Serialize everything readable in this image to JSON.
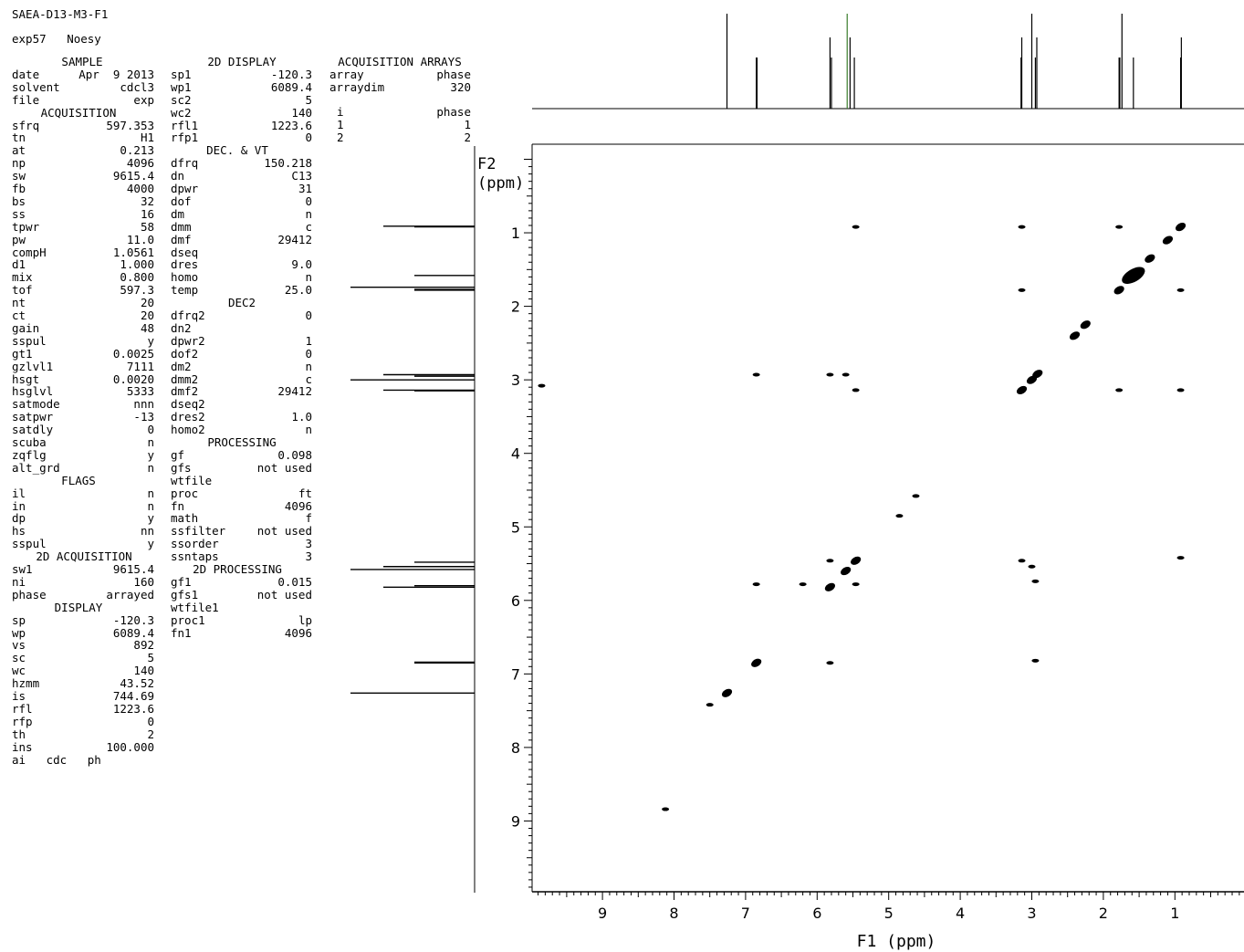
{
  "header": {
    "title": "SAEA-D13-M3-F1",
    "experiment": "exp57   Noesy"
  },
  "sample_block": {
    "heading": "SAMPLE",
    "rows": [
      [
        "date",
        "Apr  9 2013"
      ],
      [
        "solvent",
        "cdcl3"
      ],
      [
        "file",
        "exp"
      ]
    ]
  },
  "acquisition_block": {
    "heading": "ACQUISITION",
    "rows": [
      [
        "sfrq",
        "597.353"
      ],
      [
        "tn",
        "H1"
      ],
      [
        "at",
        "0.213"
      ],
      [
        "np",
        "4096"
      ],
      [
        "sw",
        "9615.4"
      ],
      [
        "fb",
        "4000"
      ],
      [
        "bs",
        "32"
      ],
      [
        "ss",
        "16"
      ],
      [
        "tpwr",
        "58"
      ],
      [
        "pw",
        "11.0"
      ],
      [
        "compH",
        "1.0561"
      ],
      [
        "d1",
        "1.000"
      ],
      [
        "mix",
        "0.800"
      ],
      [
        "tof",
        "597.3"
      ],
      [
        "nt",
        "20"
      ],
      [
        "ct",
        "20"
      ],
      [
        "gain",
        "48"
      ],
      [
        "sspul",
        "y"
      ],
      [
        "gt1",
        "0.0025"
      ],
      [
        "gzlvl1",
        "7111"
      ],
      [
        "hsgt",
        "0.0020"
      ],
      [
        "hsglvl",
        "5333"
      ],
      [
        "satmode",
        "nnn"
      ],
      [
        "satpwr",
        "-13"
      ],
      [
        "satdly",
        "0"
      ],
      [
        "scuba",
        "n"
      ],
      [
        "zqflg",
        "y"
      ],
      [
        "alt_grd",
        "n"
      ]
    ]
  },
  "flags_block": {
    "heading": "FLAGS",
    "rows": [
      [
        "il",
        "n"
      ],
      [
        "in",
        "n"
      ],
      [
        "dp",
        "y"
      ],
      [
        "hs",
        "nn"
      ],
      [
        "sspul",
        "y"
      ]
    ]
  },
  "acq2d_block": {
    "heading": "2D ACQUISITION",
    "rows": [
      [
        "sw1",
        "9615.4"
      ],
      [
        "ni",
        "160"
      ],
      [
        "phase",
        "arrayed"
      ]
    ]
  },
  "display_block": {
    "heading": "DISPLAY",
    "rows": [
      [
        "sp",
        "-120.3"
      ],
      [
        "wp",
        "6089.4"
      ],
      [
        "vs",
        "892"
      ],
      [
        "sc",
        "5"
      ],
      [
        "wc",
        "140"
      ],
      [
        "hzmm",
        "43.52"
      ],
      [
        "is",
        "744.69"
      ],
      [
        "rfl",
        "1223.6"
      ],
      [
        "rfp",
        "0"
      ],
      [
        "th",
        "2"
      ],
      [
        "ins",
        "100.000"
      ],
      [
        "ai   cdc   ph",
        ""
      ]
    ]
  },
  "display2d_block": {
    "heading": "2D DISPLAY",
    "rows": [
      [
        "sp1",
        "-120.3"
      ],
      [
        "wp1",
        "6089.4"
      ],
      [
        "sc2",
        "5"
      ],
      [
        "wc2",
        "140"
      ],
      [
        "rfl1",
        "1223.6"
      ],
      [
        "rfp1",
        "0"
      ]
    ]
  },
  "decvt_block": {
    "heading": "DEC. & VT",
    "rows": [
      [
        "dfrq",
        "150.218"
      ],
      [
        "dn",
        "C13"
      ],
      [
        "dpwr",
        "31"
      ],
      [
        "dof",
        "0"
      ],
      [
        "dm",
        "n"
      ],
      [
        "dmm",
        "c"
      ],
      [
        "dmf",
        "29412"
      ],
      [
        "dseq",
        ""
      ],
      [
        "dres",
        "9.0"
      ],
      [
        "homo",
        "n"
      ],
      [
        "temp",
        "25.0"
      ]
    ]
  },
  "dec2_block": {
    "heading": "DEC2",
    "rows": [
      [
        "dfrq2",
        "0"
      ],
      [
        "dn2",
        ""
      ],
      [
        "dpwr2",
        "1"
      ],
      [
        "dof2",
        "0"
      ],
      [
        "dm2",
        "n"
      ],
      [
        "dmm2",
        "c"
      ],
      [
        "dmf2",
        "29412"
      ],
      [
        "dseq2",
        ""
      ],
      [
        "dres2",
        "1.0"
      ],
      [
        "homo2",
        "n"
      ]
    ]
  },
  "processing_block": {
    "heading": "PROCESSING",
    "rows": [
      [
        "gf",
        "0.098"
      ],
      [
        "gfs",
        "not used"
      ],
      [
        "wtfile",
        ""
      ],
      [
        "proc",
        "ft"
      ],
      [
        "fn",
        "4096"
      ],
      [
        "math",
        "f"
      ],
      [
        "ssfilter",
        "not used"
      ],
      [
        "ssorder",
        "3"
      ],
      [
        "ssntaps",
        "3"
      ]
    ]
  },
  "processing2d_block": {
    "heading": "2D PROCESSING",
    "rows": [
      [
        "gf1",
        "0.015"
      ],
      [
        "gfs1",
        "not used"
      ],
      [
        "wtfile1",
        ""
      ],
      [
        "proc1",
        "lp"
      ],
      [
        "fn1",
        "4096"
      ]
    ]
  },
  "arrays_block": {
    "heading": "ACQUISITION ARRAYS",
    "rows": [
      [
        "array",
        "phase"
      ],
      [
        "arraydim",
        "320"
      ]
    ],
    "table_header": [
      "i",
      "phase"
    ],
    "table_rows": [
      [
        "1",
        "1"
      ],
      [
        "2",
        "2"
      ]
    ]
  },
  "chart_data": {
    "type": "scatter",
    "title": "",
    "xlabel": "F1 (ppm)",
    "ylabel": "F2\n(ppm)",
    "xlim": [
      10.0,
      0.0
    ],
    "ylim": [
      0.0,
      10.0
    ],
    "x_ticks": [
      9,
      8,
      7,
      6,
      5,
      4,
      3,
      2,
      1
    ],
    "y_ticks": [
      1,
      2,
      3,
      4,
      5,
      6,
      7,
      8,
      9
    ],
    "projection_peaks_ppm": [
      7.26,
      6.85,
      6.84,
      5.82,
      5.8,
      5.58,
      5.54,
      5.48,
      3.15,
      3.14,
      3.0,
      2.95,
      2.93,
      1.78,
      1.77,
      1.74,
      1.58,
      0.92,
      0.91
    ],
    "diagonal_peaks": [
      {
        "x": 7.26,
        "y": 7.26
      },
      {
        "x": 6.85,
        "y": 6.85
      },
      {
        "x": 5.82,
        "y": 5.82
      },
      {
        "x": 5.6,
        "y": 5.6
      },
      {
        "x": 5.46,
        "y": 5.46
      },
      {
        "x": 3.14,
        "y": 3.14
      },
      {
        "x": 3.0,
        "y": 3.0
      },
      {
        "x": 2.92,
        "y": 2.92
      },
      {
        "x": 2.4,
        "y": 2.4
      },
      {
        "x": 2.25,
        "y": 2.25
      },
      {
        "x": 1.78,
        "y": 1.78
      },
      {
        "x": 1.58,
        "y": 1.58
      },
      {
        "x": 1.35,
        "y": 1.35
      },
      {
        "x": 1.1,
        "y": 1.1
      },
      {
        "x": 0.92,
        "y": 0.92
      }
    ],
    "cross_peaks": [
      {
        "x": 5.46,
        "y": 0.92
      },
      {
        "x": 3.14,
        "y": 0.92
      },
      {
        "x": 1.78,
        "y": 0.92
      },
      {
        "x": 0.92,
        "y": 1.78
      },
      {
        "x": 3.14,
        "y": 1.78
      },
      {
        "x": 6.85,
        "y": 2.93
      },
      {
        "x": 5.82,
        "y": 2.93
      },
      {
        "x": 5.6,
        "y": 2.93
      },
      {
        "x": 5.46,
        "y": 3.14
      },
      {
        "x": 1.78,
        "y": 3.14
      },
      {
        "x": 0.92,
        "y": 3.14
      },
      {
        "x": 4.85,
        "y": 4.85
      },
      {
        "x": 4.62,
        "y": 4.58
      },
      {
        "x": 5.82,
        "y": 5.46
      },
      {
        "x": 3.14,
        "y": 5.46
      },
      {
        "x": 0.92,
        "y": 5.42
      },
      {
        "x": 3.0,
        "y": 5.54
      },
      {
        "x": 2.95,
        "y": 5.74
      },
      {
        "x": 6.85,
        "y": 5.78
      },
      {
        "x": 6.2,
        "y": 5.78
      },
      {
        "x": 5.46,
        "y": 5.78
      },
      {
        "x": 5.82,
        "y": 6.85
      },
      {
        "x": 2.95,
        "y": 6.82
      },
      {
        "x": 7.5,
        "y": 7.42
      },
      {
        "x": 8.12,
        "y": 8.84
      },
      {
        "x": 9.85,
        "y": 3.08
      }
    ]
  }
}
